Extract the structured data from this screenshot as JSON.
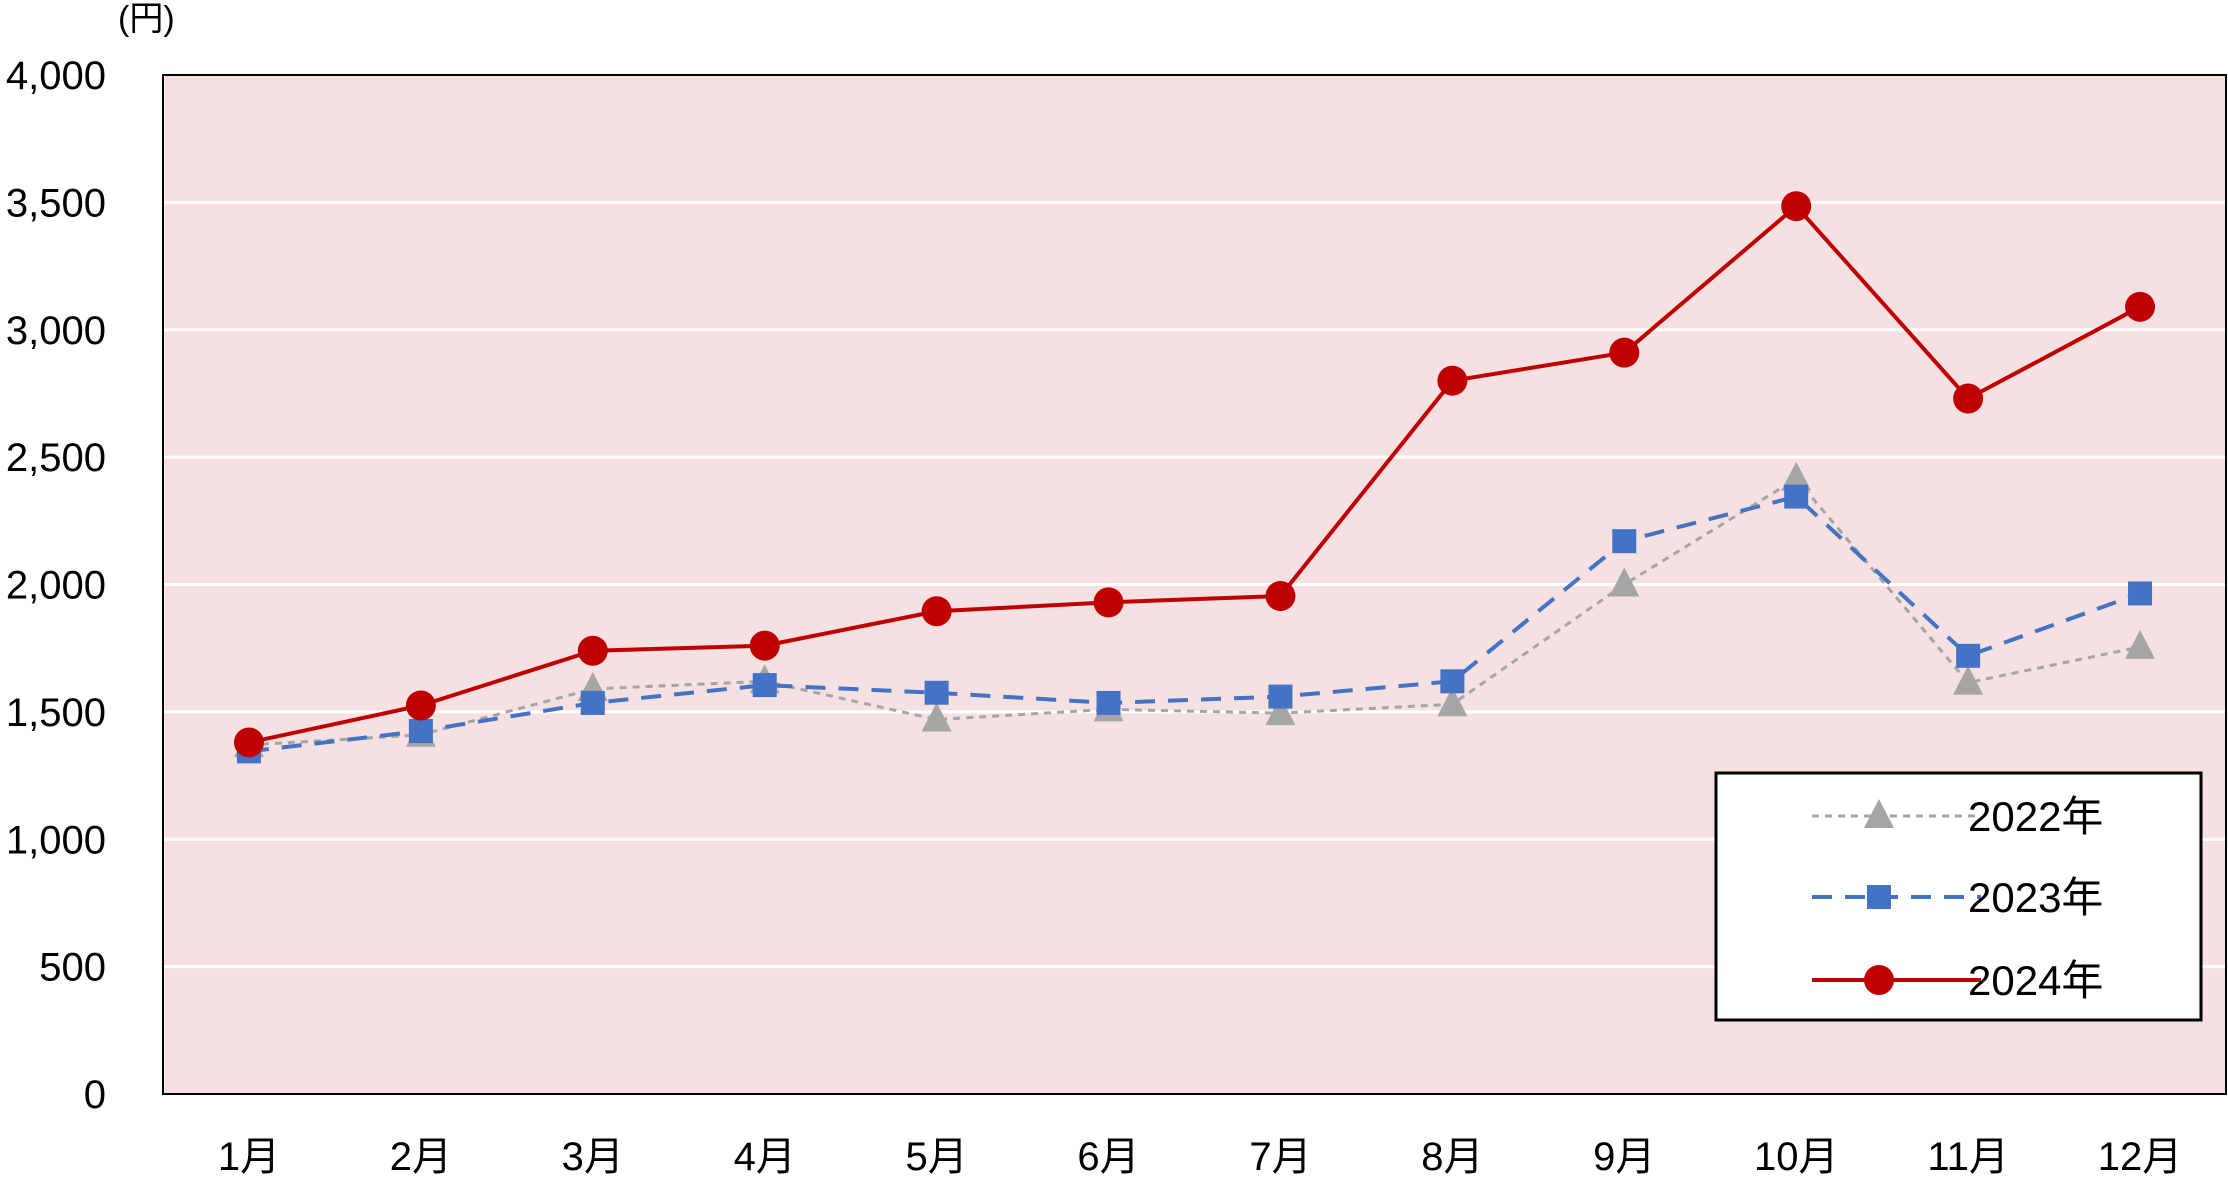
{
  "chart_data": {
    "type": "line",
    "ylabel": "(円)",
    "categories": [
      "1月",
      "2月",
      "3月",
      "4月",
      "5月",
      "6月",
      "7月",
      "8月",
      "9月",
      "10月",
      "11月",
      "12月"
    ],
    "ylim": [
      0,
      4000
    ],
    "yticks": [
      0,
      500,
      1000,
      1500,
      2000,
      2500,
      3000,
      3500,
      4000
    ],
    "ytick_labels": [
      "0",
      "500",
      "1,000",
      "1,500",
      "2,000",
      "2,500",
      "3,000",
      "3,500",
      "4,000"
    ],
    "grid": true,
    "legend_position": "bottom-right",
    "plot_background": "#f5e1e1",
    "series": [
      {
        "name": "2022年",
        "color": "#a5a5a5",
        "marker": "triangle",
        "line_style": "dotted",
        "values": [
          1370,
          1410,
          1590,
          1620,
          1470,
          1510,
          1495,
          1530,
          2000,
          2415,
          1615,
          1755
        ]
      },
      {
        "name": "2023年",
        "color": "#4472c4",
        "marker": "square",
        "line_style": "dashed",
        "values": [
          1345,
          1425,
          1535,
          1605,
          1575,
          1535,
          1560,
          1620,
          2170,
          2345,
          1720,
          1965
        ]
      },
      {
        "name": "2024年",
        "color": "#c00000",
        "marker": "circle",
        "line_style": "solid",
        "values": [
          1380,
          1525,
          1740,
          1760,
          1895,
          1930,
          1955,
          2800,
          2910,
          3485,
          2730,
          3090
        ]
      }
    ]
  }
}
